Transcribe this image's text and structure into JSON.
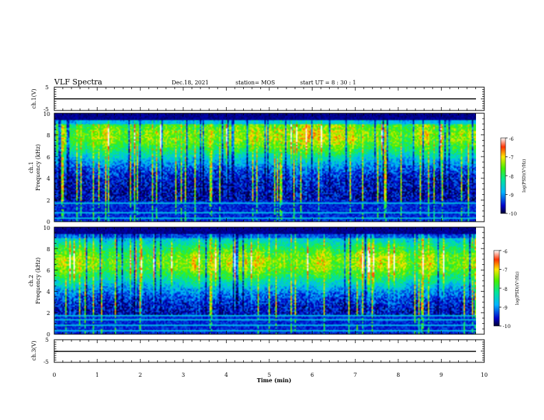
{
  "header": {
    "title": "VLF Spectra",
    "date": "Dec.18, 2021",
    "station": "station= MOS",
    "start": "start  UT =   8 : 30 : 1"
  },
  "chart_data": [
    {
      "type": "line",
      "id": "ch1-voltage",
      "ylabel": "ch.1(V)",
      "ylim": [
        -5,
        5
      ],
      "yticks": [
        "5",
        "-5"
      ],
      "xlim": [
        0,
        10
      ],
      "series": [
        {
          "x": [
            0,
            9.8
          ],
          "y": [
            0,
            0
          ]
        }
      ]
    },
    {
      "type": "heatmap",
      "id": "ch1-spectrogram",
      "ylabel": "ch.1\nFrequency  (kHz)",
      "ylim": [
        0,
        10
      ],
      "yticks": [
        "0",
        "2",
        "4",
        "6",
        "8",
        "10"
      ],
      "xlim": [
        0,
        10
      ],
      "data_xmax": 9.8,
      "colorbar": {
        "label": "log(PSD)(V²/Hz)",
        "range": [
          -10,
          -6
        ],
        "ticks": [
          "-6",
          "-7",
          "-8",
          "-9",
          "-10"
        ]
      }
    },
    {
      "type": "heatmap",
      "id": "ch2-spectrogram",
      "ylabel": "ch.2\nFrequency  (kHz)",
      "ylim": [
        0,
        10
      ],
      "yticks": [
        "0",
        "2",
        "4",
        "6",
        "8",
        "10"
      ],
      "xlim": [
        0,
        10
      ],
      "data_xmax": 9.8,
      "colorbar": {
        "label": "log(PSD)(V²/Hz)",
        "range": [
          -10,
          -6
        ],
        "ticks": [
          "-6",
          "-7",
          "-8",
          "-9",
          "-10"
        ]
      }
    },
    {
      "type": "line",
      "id": "ch3-voltage",
      "ylabel": "ch.3(V)",
      "ylim": [
        -5,
        5
      ],
      "yticks": [
        "5",
        "-5"
      ],
      "xlim": [
        0,
        10
      ],
      "series": [
        {
          "x": [
            0,
            9.8
          ],
          "y": [
            0,
            0
          ]
        }
      ]
    }
  ],
  "xaxis": {
    "label": "Time  (min)",
    "ticks": [
      "0",
      "1",
      "2",
      "3",
      "4",
      "5",
      "6",
      "7",
      "8",
      "9",
      "10"
    ]
  }
}
